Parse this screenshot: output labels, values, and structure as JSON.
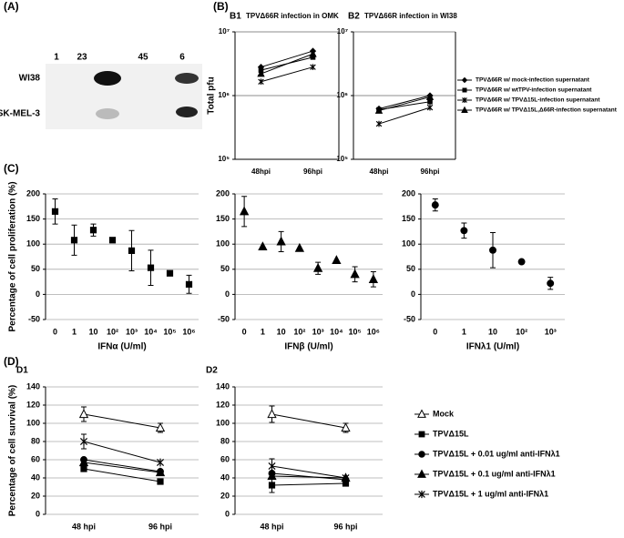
{
  "panel_labels": [
    "(A)",
    "(B)",
    "(C)",
    "(D)"
  ],
  "blot": {
    "lanes": [
      "1",
      "23",
      "45",
      "6"
    ],
    "rows": [
      "WI38",
      "SK-MEL-3"
    ]
  },
  "chart_data": [
    {
      "type": "line",
      "panel": "B1",
      "title": "TPVΔ66R infection in OMK",
      "ylabel": "Total pfu",
      "log_y": true,
      "grid": true,
      "legend": "right",
      "categories": [
        "48hpi",
        "96hpi"
      ],
      "ylim": [
        100000,
        10000000
      ],
      "yticks": [
        {
          "value": 10000000,
          "label": "10⁷"
        },
        {
          "value": 1000000,
          "label": "10⁶"
        },
        {
          "value": 100000,
          "label": "10⁵"
        }
      ],
      "series": [
        {
          "name": "TPVΔ66R w/ mock-infection supernatant",
          "color": "#000",
          "marker": "diamond",
          "values": [
            2800000,
            5000000
          ]
        },
        {
          "name": "TPVΔ66R w/ wtTPV-infection supernatant",
          "color": "#000",
          "marker": "square",
          "values": [
            2500000,
            4000000
          ]
        },
        {
          "name": "TPVΔ66R w/ TPVΔ15L-infection supernatant",
          "color": "#000",
          "marker": "x",
          "values": [
            1650000,
            2800000
          ]
        },
        {
          "name": "TPVΔ66R w/ TPVΔ15L,Δ66R-infection supernatant",
          "color": "#000",
          "marker": "triangle",
          "values": [
            2200000,
            4500000
          ]
        }
      ]
    },
    {
      "type": "line",
      "panel": "B2",
      "title": "TPVΔ66R infection in WI38",
      "log_y": true,
      "grid": true,
      "categories": [
        "48hpi",
        "96hpi"
      ],
      "ylim": [
        100000,
        10000000
      ],
      "yticks": [
        {
          "value": 10000000,
          "label": "10⁷"
        },
        {
          "value": 1000000,
          "label": "10⁶"
        },
        {
          "value": 100000,
          "label": "10⁵"
        }
      ],
      "series": [
        {
          "color": "#000",
          "marker": "diamond",
          "values": [
            620000,
            1000000
          ]
        },
        {
          "color": "#000",
          "marker": "square",
          "values": [
            600000,
            800000
          ]
        },
        {
          "color": "#000",
          "marker": "x",
          "values": [
            360000,
            650000
          ]
        },
        {
          "color": "#000",
          "marker": "triangle",
          "values": [
            580000,
            950000
          ]
        }
      ]
    },
    {
      "type": "scatter",
      "ylabel": "Percentage of cell proliferation (%)",
      "xlabel": "IFNα (U/ml)",
      "grid": true,
      "categories": [
        "0",
        "1",
        "10",
        "10²",
        "10³",
        "10⁴",
        "10⁵",
        "10⁶"
      ],
      "ylim": [
        -50,
        200
      ],
      "yticks": [
        200,
        150,
        100,
        50,
        0,
        -50
      ],
      "series": [
        {
          "color": "#000",
          "marker": "square",
          "values": [
            165,
            108,
            128,
            108,
            87,
            53,
            42,
            20
          ],
          "errors": [
            25,
            30,
            12,
            null,
            40,
            35,
            null,
            18
          ]
        }
      ]
    },
    {
      "type": "scatter",
      "xlabel": "IFNβ (U/ml)",
      "grid": true,
      "categories": [
        "0",
        "1",
        "10",
        "10²",
        "10³",
        "10⁴",
        "10⁵",
        "10⁶"
      ],
      "ylim": [
        -50,
        200
      ],
      "yticks": [
        200,
        150,
        100,
        50,
        0,
        -50
      ],
      "series": [
        {
          "color": "#000",
          "marker": "triangle",
          "values": [
            165,
            95,
            105,
            92,
            52,
            68,
            40,
            30
          ],
          "errors": [
            30,
            null,
            20,
            null,
            12,
            null,
            15,
            15
          ]
        }
      ]
    },
    {
      "type": "scatter",
      "xlabel": "IFNλ1 (U/ml)",
      "grid": true,
      "categories": [
        "0",
        "1",
        "10",
        "10²",
        "10³"
      ],
      "ylim": [
        -50,
        200
      ],
      "yticks": [
        200,
        150,
        100,
        50,
        0,
        -50
      ],
      "series": [
        {
          "color": "#000",
          "marker": "circle",
          "values": [
            178,
            127,
            88,
            65,
            22
          ],
          "errors": [
            12,
            15,
            35,
            null,
            12
          ]
        }
      ]
    },
    {
      "type": "line",
      "panel": "D1",
      "ylabel": "Percentage of cell survival (%)",
      "grid": true,
      "legend": "right",
      "categories": [
        "48 hpi",
        "96 hpi"
      ],
      "ylim": [
        0,
        140
      ],
      "yticks": [
        140,
        120,
        100,
        80,
        60,
        40,
        20,
        0
      ],
      "series": [
        {
          "name": "Mock",
          "color": "#000",
          "marker": "open-triangle",
          "values": [
            110,
            95
          ],
          "errors": [
            8,
            5
          ]
        },
        {
          "name": "TPVΔ15L",
          "color": "#000",
          "marker": "square",
          "values": [
            50,
            36
          ],
          "errors": [
            null,
            null
          ]
        },
        {
          "name": "TPVΔ15L + 0.01 ug/ml anti-IFNλ1",
          "color": "#000",
          "marker": "circle",
          "values": [
            60,
            47
          ],
          "errors": [
            null,
            null
          ]
        },
        {
          "name": "TPVΔ15L + 0.1 ug/ml anti-IFNλ1",
          "color": "#000",
          "marker": "triangle",
          "values": [
            57,
            46
          ],
          "errors": [
            null,
            null
          ]
        },
        {
          "name": "TPVΔ15L + 1 ug/ml anti-IFNλ1",
          "color": "#000",
          "marker": "x",
          "values": [
            80,
            57
          ],
          "errors": [
            8,
            null
          ]
        }
      ]
    },
    {
      "type": "line",
      "panel": "D2",
      "grid": true,
      "categories": [
        "48 hpi",
        "96 hpi"
      ],
      "ylim": [
        0,
        140
      ],
      "yticks": [
        140,
        120,
        100,
        80,
        60,
        40,
        20,
        0
      ],
      "series": [
        {
          "color": "#000",
          "marker": "open-triangle",
          "values": [
            110,
            95
          ],
          "errors": [
            9,
            5
          ]
        },
        {
          "color": "#000",
          "marker": "square",
          "values": [
            32,
            34
          ],
          "errors": [
            8,
            null
          ]
        },
        {
          "color": "#000",
          "marker": "circle",
          "values": [
            45,
            38
          ],
          "errors": [
            null,
            null
          ]
        },
        {
          "color": "#000",
          "marker": "triangle",
          "values": [
            42,
            40
          ],
          "errors": [
            null,
            null
          ]
        },
        {
          "color": "#000",
          "marker": "x",
          "values": [
            53,
            40
          ],
          "errors": [
            8,
            null
          ]
        }
      ]
    }
  ]
}
